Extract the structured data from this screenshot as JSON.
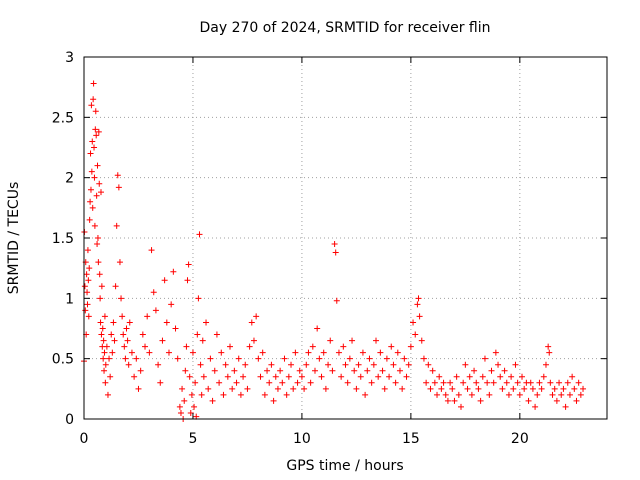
{
  "chart_data": {
    "type": "scatter",
    "title": "Day 270 of 2024, SRMTID for receiver flin",
    "xlabel": "GPS time / hours",
    "ylabel": "SRMTID / TECUs",
    "xlim": [
      0,
      24
    ],
    "ylim": [
      0,
      3
    ],
    "x_ticks": [
      0,
      5,
      10,
      15,
      20
    ],
    "x_tick_labels": [
      "0",
      "5",
      "10",
      "15",
      "20"
    ],
    "y_ticks": [
      0,
      0.5,
      1,
      1.5,
      2,
      2.5,
      3
    ],
    "y_tick_labels": [
      "0",
      "0.5",
      "1",
      "1.5",
      "2",
      "2.5",
      "3"
    ],
    "grid": true,
    "marker": "+",
    "series": [
      {
        "name": "SRMTID",
        "color": "#ff0000",
        "points": [
          [
            0.0,
            0.48
          ],
          [
            0.02,
            1.55
          ],
          [
            0.04,
            1.1
          ],
          [
            0.06,
            0.9
          ],
          [
            0.08,
            1.3
          ],
          [
            0.1,
            0.7
          ],
          [
            0.12,
            1.2
          ],
          [
            0.14,
            1.05
          ],
          [
            0.16,
            0.95
          ],
          [
            0.18,
            1.4
          ],
          [
            0.2,
            1.15
          ],
          [
            0.22,
            0.85
          ],
          [
            0.24,
            1.25
          ],
          [
            0.26,
            1.65
          ],
          [
            0.28,
            1.8
          ],
          [
            0.3,
            2.2
          ],
          [
            0.32,
            1.9
          ],
          [
            0.34,
            2.6
          ],
          [
            0.36,
            2.05
          ],
          [
            0.38,
            2.3
          ],
          [
            0.4,
            1.75
          ],
          [
            0.42,
            2.65
          ],
          [
            0.44,
            2.78
          ],
          [
            0.46,
            2.25
          ],
          [
            0.48,
            2.0
          ],
          [
            0.5,
            1.6
          ],
          [
            0.52,
            2.4
          ],
          [
            0.54,
            2.55
          ],
          [
            0.56,
            2.35
          ],
          [
            0.58,
            1.85
          ],
          [
            0.6,
            1.45
          ],
          [
            0.62,
            2.1
          ],
          [
            0.64,
            1.5
          ],
          [
            0.66,
            1.3
          ],
          [
            0.68,
            2.38
          ],
          [
            0.7,
            1.95
          ],
          [
            0.72,
            1.2
          ],
          [
            0.74,
            1.0
          ],
          [
            0.76,
            0.8
          ],
          [
            0.78,
            1.88
          ],
          [
            0.8,
            0.7
          ],
          [
            0.82,
            1.1
          ],
          [
            0.84,
            0.6
          ],
          [
            0.86,
            0.75
          ],
          [
            0.88,
            0.5
          ],
          [
            0.9,
            0.65
          ],
          [
            0.92,
            0.4
          ],
          [
            0.94,
            0.55
          ],
          [
            0.96,
            0.85
          ],
          [
            0.98,
            0.3
          ],
          [
            1.0,
            0.45
          ],
          [
            1.05,
            0.6
          ],
          [
            1.1,
            0.2
          ],
          [
            1.15,
            0.5
          ],
          [
            1.2,
            0.35
          ],
          [
            1.25,
            0.7
          ],
          [
            1.3,
            0.55
          ],
          [
            1.35,
            0.8
          ],
          [
            1.4,
            0.65
          ],
          [
            1.45,
            1.1
          ],
          [
            1.5,
            1.6
          ],
          [
            1.55,
            2.02
          ],
          [
            1.6,
            1.92
          ],
          [
            1.65,
            1.3
          ],
          [
            1.7,
            1.0
          ],
          [
            1.75,
            0.85
          ],
          [
            1.8,
            0.7
          ],
          [
            1.85,
            0.6
          ],
          [
            1.9,
            0.5
          ],
          [
            1.95,
            0.75
          ],
          [
            2.0,
            0.65
          ],
          [
            2.05,
            0.45
          ],
          [
            2.1,
            0.8
          ],
          [
            2.2,
            0.55
          ],
          [
            2.3,
            0.35
          ],
          [
            2.4,
            0.5
          ],
          [
            2.5,
            0.25
          ],
          [
            2.6,
            0.4
          ],
          [
            2.7,
            0.7
          ],
          [
            2.8,
            0.6
          ],
          [
            2.9,
            0.85
          ],
          [
            3.0,
            0.55
          ],
          [
            3.1,
            1.4
          ],
          [
            3.2,
            1.05
          ],
          [
            3.3,
            0.9
          ],
          [
            3.4,
            0.45
          ],
          [
            3.5,
            0.3
          ],
          [
            3.6,
            0.65
          ],
          [
            3.7,
            1.15
          ],
          [
            3.8,
            0.8
          ],
          [
            3.9,
            0.55
          ],
          [
            4.0,
            0.95
          ],
          [
            4.1,
            1.22
          ],
          [
            4.2,
            0.75
          ],
          [
            4.3,
            0.5
          ],
          [
            4.4,
            0.1
          ],
          [
            4.45,
            0.05
          ],
          [
            4.5,
            0.25
          ],
          [
            4.55,
            0.0
          ],
          [
            4.6,
            0.15
          ],
          [
            4.65,
            0.4
          ],
          [
            4.7,
            0.6
          ],
          [
            4.75,
            1.15
          ],
          [
            4.8,
            1.28
          ],
          [
            4.85,
            0.35
          ],
          [
            4.9,
            0.05
          ],
          [
            4.95,
            0.2
          ],
          [
            5.0,
            0.55
          ],
          [
            5.05,
            0.1
          ],
          [
            5.1,
            0.3
          ],
          [
            5.15,
            0.02
          ],
          [
            5.2,
            0.7
          ],
          [
            5.25,
            1.0
          ],
          [
            5.3,
            1.53
          ],
          [
            5.35,
            0.45
          ],
          [
            5.4,
            0.2
          ],
          [
            5.45,
            0.65
          ],
          [
            5.5,
            0.35
          ],
          [
            5.6,
            0.8
          ],
          [
            5.7,
            0.25
          ],
          [
            5.8,
            0.5
          ],
          [
            5.9,
            0.15
          ],
          [
            6.0,
            0.4
          ],
          [
            6.1,
            0.7
          ],
          [
            6.2,
            0.3
          ],
          [
            6.3,
            0.55
          ],
          [
            6.4,
            0.2
          ],
          [
            6.5,
            0.45
          ],
          [
            6.6,
            0.35
          ],
          [
            6.7,
            0.6
          ],
          [
            6.8,
            0.25
          ],
          [
            6.9,
            0.4
          ],
          [
            7.0,
            0.3
          ],
          [
            7.1,
            0.5
          ],
          [
            7.2,
            0.2
          ],
          [
            7.3,
            0.35
          ],
          [
            7.4,
            0.45
          ],
          [
            7.5,
            0.25
          ],
          [
            7.6,
            0.6
          ],
          [
            7.7,
            0.8
          ],
          [
            7.8,
            0.65
          ],
          [
            7.9,
            0.85
          ],
          [
            8.0,
            0.5
          ],
          [
            8.1,
            0.35
          ],
          [
            8.2,
            0.55
          ],
          [
            8.3,
            0.2
          ],
          [
            8.4,
            0.4
          ],
          [
            8.5,
            0.3
          ],
          [
            8.6,
            0.45
          ],
          [
            8.7,
            0.15
          ],
          [
            8.8,
            0.35
          ],
          [
            8.9,
            0.25
          ],
          [
            9.0,
            0.4
          ],
          [
            9.1,
            0.3
          ],
          [
            9.2,
            0.5
          ],
          [
            9.3,
            0.2
          ],
          [
            9.4,
            0.35
          ],
          [
            9.5,
            0.45
          ],
          [
            9.6,
            0.25
          ],
          [
            9.7,
            0.55
          ],
          [
            9.8,
            0.3
          ],
          [
            9.9,
            0.4
          ],
          [
            10.0,
            0.35
          ],
          [
            10.1,
            0.25
          ],
          [
            10.2,
            0.45
          ],
          [
            10.3,
            0.55
          ],
          [
            10.4,
            0.3
          ],
          [
            10.5,
            0.6
          ],
          [
            10.6,
            0.4
          ],
          [
            10.7,
            0.75
          ],
          [
            10.8,
            0.5
          ],
          [
            10.9,
            0.35
          ],
          [
            11.0,
            0.55
          ],
          [
            11.1,
            0.25
          ],
          [
            11.2,
            0.45
          ],
          [
            11.3,
            0.65
          ],
          [
            11.4,
            0.4
          ],
          [
            11.5,
            1.45
          ],
          [
            11.55,
            1.38
          ],
          [
            11.6,
            0.98
          ],
          [
            11.7,
            0.55
          ],
          [
            11.8,
            0.35
          ],
          [
            11.9,
            0.6
          ],
          [
            12.0,
            0.45
          ],
          [
            12.1,
            0.3
          ],
          [
            12.2,
            0.5
          ],
          [
            12.3,
            0.65
          ],
          [
            12.4,
            0.4
          ],
          [
            12.5,
            0.25
          ],
          [
            12.6,
            0.45
          ],
          [
            12.7,
            0.35
          ],
          [
            12.8,
            0.55
          ],
          [
            12.9,
            0.2
          ],
          [
            13.0,
            0.4
          ],
          [
            13.1,
            0.5
          ],
          [
            13.2,
            0.3
          ],
          [
            13.3,
            0.45
          ],
          [
            13.4,
            0.65
          ],
          [
            13.5,
            0.35
          ],
          [
            13.6,
            0.55
          ],
          [
            13.7,
            0.4
          ],
          [
            13.8,
            0.25
          ],
          [
            13.9,
            0.5
          ],
          [
            14.0,
            0.35
          ],
          [
            14.1,
            0.6
          ],
          [
            14.2,
            0.45
          ],
          [
            14.3,
            0.3
          ],
          [
            14.4,
            0.55
          ],
          [
            14.5,
            0.4
          ],
          [
            14.6,
            0.25
          ],
          [
            14.7,
            0.5
          ],
          [
            14.8,
            0.35
          ],
          [
            14.9,
            0.45
          ],
          [
            15.0,
            0.6
          ],
          [
            15.1,
            0.8
          ],
          [
            15.2,
            0.7
          ],
          [
            15.3,
            0.95
          ],
          [
            15.35,
            1.0
          ],
          [
            15.4,
            0.85
          ],
          [
            15.5,
            0.65
          ],
          [
            15.6,
            0.5
          ],
          [
            15.7,
            0.3
          ],
          [
            15.8,
            0.45
          ],
          [
            15.9,
            0.25
          ],
          [
            16.0,
            0.4
          ],
          [
            16.1,
            0.3
          ],
          [
            16.2,
            0.2
          ],
          [
            16.3,
            0.35
          ],
          [
            16.4,
            0.25
          ],
          [
            16.5,
            0.3
          ],
          [
            16.6,
            0.2
          ],
          [
            16.7,
            0.15
          ],
          [
            16.8,
            0.3
          ],
          [
            16.9,
            0.25
          ],
          [
            17.0,
            0.15
          ],
          [
            17.1,
            0.35
          ],
          [
            17.2,
            0.2
          ],
          [
            17.3,
            0.1
          ],
          [
            17.4,
            0.3
          ],
          [
            17.5,
            0.45
          ],
          [
            17.6,
            0.25
          ],
          [
            17.7,
            0.35
          ],
          [
            17.8,
            0.2
          ],
          [
            17.9,
            0.4
          ],
          [
            18.0,
            0.3
          ],
          [
            18.1,
            0.25
          ],
          [
            18.2,
            0.15
          ],
          [
            18.3,
            0.35
          ],
          [
            18.4,
            0.5
          ],
          [
            18.5,
            0.3
          ],
          [
            18.6,
            0.2
          ],
          [
            18.7,
            0.4
          ],
          [
            18.8,
            0.3
          ],
          [
            18.9,
            0.55
          ],
          [
            19.0,
            0.45
          ],
          [
            19.1,
            0.35
          ],
          [
            19.2,
            0.25
          ],
          [
            19.3,
            0.4
          ],
          [
            19.4,
            0.3
          ],
          [
            19.5,
            0.2
          ],
          [
            19.6,
            0.35
          ],
          [
            19.7,
            0.25
          ],
          [
            19.8,
            0.45
          ],
          [
            19.9,
            0.3
          ],
          [
            20.0,
            0.2
          ],
          [
            20.1,
            0.35
          ],
          [
            20.2,
            0.25
          ],
          [
            20.3,
            0.3
          ],
          [
            20.4,
            0.15
          ],
          [
            20.5,
            0.3
          ],
          [
            20.6,
            0.25
          ],
          [
            20.7,
            0.1
          ],
          [
            20.8,
            0.2
          ],
          [
            20.9,
            0.3
          ],
          [
            21.0,
            0.25
          ],
          [
            21.1,
            0.35
          ],
          [
            21.2,
            0.45
          ],
          [
            21.3,
            0.6
          ],
          [
            21.35,
            0.55
          ],
          [
            21.4,
            0.3
          ],
          [
            21.5,
            0.2
          ],
          [
            21.6,
            0.25
          ],
          [
            21.7,
            0.15
          ],
          [
            21.8,
            0.3
          ],
          [
            21.9,
            0.2
          ],
          [
            22.0,
            0.25
          ],
          [
            22.1,
            0.1
          ],
          [
            22.2,
            0.3
          ],
          [
            22.3,
            0.2
          ],
          [
            22.4,
            0.35
          ],
          [
            22.5,
            0.25
          ],
          [
            22.6,
            0.15
          ],
          [
            22.7,
            0.3
          ],
          [
            22.8,
            0.2
          ],
          [
            22.9,
            0.25
          ]
        ]
      }
    ]
  }
}
